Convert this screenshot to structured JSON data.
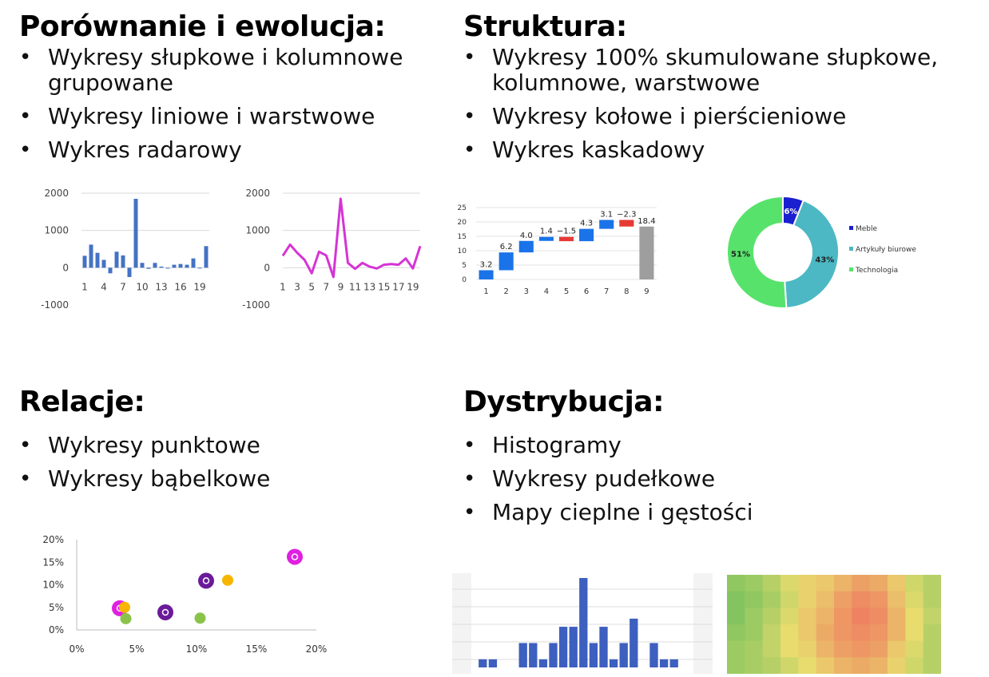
{
  "sections": {
    "comparison": {
      "title": "Porównanie i ewolucja:",
      "items": [
        "Wykresy słupkowe i kolumnowe grupowane",
        "Wykresy liniowe i warstwowe",
        "Wykres radarowy"
      ]
    },
    "structure": {
      "title": "Struktura:",
      "items": [
        "Wykresy 100% skumulowane słupkowe, kolumnowe, warstwowe",
        "Wykresy kołowe i pierścieniowe",
        "Wykres kaskadowy"
      ]
    },
    "relations": {
      "title": "Relacje:",
      "items": [
        "Wykresy punktowe",
        "Wykresy bąbelkowe"
      ]
    },
    "distribution": {
      "title": "Dystrybucja:",
      "items": [
        "Histogramy",
        "Wykresy pudełkowe",
        "Mapy cieplne i gęstości"
      ]
    }
  },
  "colors": {
    "bar_blue": "#4472c4",
    "line_magenta": "#d633d6",
    "waterfall_blue": "#1a73e8",
    "waterfall_red": "#e53935",
    "waterfall_total": "#9e9e9e",
    "donut_navy": "#1a1fcf",
    "donut_teal": "#4cb8c4",
    "donut_green": "#57e36b",
    "hist_blue": "#3d5fbf"
  },
  "chart_data": [
    {
      "type": "bar",
      "x": [
        1,
        2,
        3,
        4,
        5,
        6,
        7,
        8,
        9,
        10,
        11,
        12,
        13,
        14,
        15,
        16,
        17,
        18,
        19,
        20
      ],
      "values": [
        320,
        620,
        400,
        210,
        -150,
        430,
        330,
        -250,
        1850,
        130,
        -30,
        130,
        30,
        -20,
        80,
        100,
        80,
        250,
        -20,
        580
      ],
      "xticks": [
        "1",
        "4",
        "7",
        "10",
        "13",
        "16",
        "19"
      ],
      "yticks": [
        "2000",
        "1000",
        "0",
        "-1000"
      ],
      "ylim": [
        -1000,
        2000
      ]
    },
    {
      "type": "line",
      "x": [
        1,
        2,
        3,
        4,
        5,
        6,
        7,
        8,
        9,
        10,
        11,
        12,
        13,
        14,
        15,
        16,
        17,
        18,
        19,
        20
      ],
      "values": [
        320,
        620,
        400,
        210,
        -150,
        430,
        330,
        -250,
        1850,
        130,
        -30,
        130,
        30,
        -20,
        80,
        100,
        80,
        250,
        -20,
        580
      ],
      "xticks": [
        "1",
        "3",
        "5",
        "7",
        "9",
        "11",
        "13",
        "15",
        "17",
        "19"
      ],
      "yticks": [
        "2000",
        "1000",
        "0",
        "-1000"
      ],
      "ylim": [
        -1000,
        2000
      ]
    },
    {
      "type": "bar",
      "subtype": "waterfall",
      "categories": [
        "1",
        "2",
        "3",
        "4",
        "5",
        "6",
        "7",
        "8",
        "9"
      ],
      "values": [
        3.2,
        6.2,
        4.0,
        1.4,
        -1.5,
        4.3,
        3.1,
        -2.3,
        18.4
      ],
      "labels": [
        "3.2",
        "6.2",
        "4.0",
        "1.4",
        "−1.5",
        "4.3",
        "3.1",
        "−2.3",
        "18.4"
      ],
      "yticks": [
        "25",
        "20",
        "15",
        "10",
        "5",
        "0"
      ],
      "ylim": [
        0,
        25
      ]
    },
    {
      "type": "pie",
      "subtype": "donut",
      "slices": [
        {
          "label": "Meble",
          "value": 6,
          "text": "6%"
        },
        {
          "label": "Artykuły biurowe",
          "value": 43,
          "text": "43%"
        },
        {
          "label": "Technologia",
          "value": 51,
          "text": "51%"
        }
      ],
      "legend_position": "right"
    },
    {
      "type": "scatter",
      "subtype": "bubble",
      "xticks": [
        "0%",
        "5%",
        "10%",
        "15%",
        "20%"
      ],
      "yticks": [
        "20%",
        "15%",
        "10%",
        "5%",
        "0%"
      ],
      "xlim": [
        0,
        20
      ],
      "ylim": [
        0,
        20
      ],
      "points": [
        {
          "x": 3.6,
          "y": 4.8,
          "color": "#e020e0",
          "ring": true
        },
        {
          "x": 4.0,
          "y": 5.0,
          "color": "#f7b500",
          "ring": false
        },
        {
          "x": 4.1,
          "y": 2.5,
          "color": "#8bc34a",
          "ring": false
        },
        {
          "x": 7.4,
          "y": 3.9,
          "color": "#6a1b9a",
          "ring": true
        },
        {
          "x": 10.3,
          "y": 2.6,
          "color": "#8bc34a",
          "ring": false
        },
        {
          "x": 10.8,
          "y": 10.9,
          "color": "#6a1b9a",
          "ring": true
        },
        {
          "x": 12.6,
          "y": 11.0,
          "color": "#f7b500",
          "ring": false
        },
        {
          "x": 18.2,
          "y": 16.2,
          "color": "#e020e0",
          "ring": true
        }
      ]
    },
    {
      "type": "bar",
      "subtype": "histogram",
      "values": [
        1,
        1,
        0,
        0,
        3,
        3,
        1,
        3,
        5,
        5,
        11,
        3,
        5,
        1,
        3,
        6,
        0,
        3,
        1,
        1
      ]
    },
    {
      "type": "heatmap",
      "rows": 6,
      "cols": 12,
      "values": [
        [
          0.15,
          0.2,
          0.3,
          0.45,
          0.55,
          0.6,
          0.7,
          0.8,
          0.75,
          0.6,
          0.4,
          0.3
        ],
        [
          0.1,
          0.15,
          0.25,
          0.4,
          0.55,
          0.65,
          0.8,
          0.9,
          0.85,
          0.65,
          0.45,
          0.3
        ],
        [
          0.1,
          0.2,
          0.3,
          0.45,
          0.6,
          0.7,
          0.85,
          0.95,
          0.9,
          0.7,
          0.5,
          0.35
        ],
        [
          0.15,
          0.2,
          0.35,
          0.5,
          0.6,
          0.75,
          0.85,
          0.9,
          0.85,
          0.7,
          0.5,
          0.3
        ],
        [
          0.2,
          0.25,
          0.35,
          0.5,
          0.55,
          0.7,
          0.8,
          0.85,
          0.8,
          0.6,
          0.45,
          0.3
        ],
        [
          0.2,
          0.25,
          0.3,
          0.4,
          0.5,
          0.6,
          0.7,
          0.75,
          0.7,
          0.55,
          0.4,
          0.3
        ]
      ]
    }
  ]
}
